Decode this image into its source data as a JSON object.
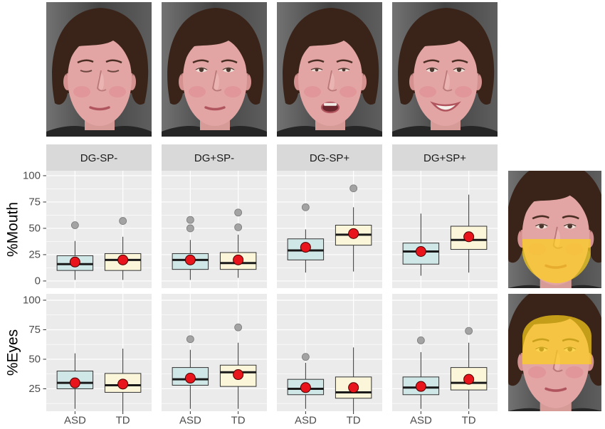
{
  "colors": {
    "panel_bg": "#ebebeb",
    "strip_bg": "#d9d9d9",
    "asd_fill": "#cfe7e6",
    "td_fill": "#fbf6da",
    "mean_point": "#e8161c",
    "outlier_point": "#a3a3a3",
    "aoi_overlay": "#ffd21a"
  },
  "chart_data": {
    "type": "boxplot",
    "facets": [
      "DG-SP-",
      "DG+SP-",
      "DG-SP+",
      "DG+SP+"
    ],
    "categories": [
      "ASD",
      "TD"
    ],
    "grid": true,
    "legend": "none",
    "rows": [
      {
        "ylabel": "%Mouth",
        "yticks": [
          0,
          25,
          50,
          75,
          100
        ],
        "ylim": [
          -6.8,
          104.7
        ],
        "panels": [
          [
            {
              "whisker_low": 1,
              "q1": 10,
              "median": 16,
              "q3": 24,
              "whisker_high": 38,
              "mean": 18,
              "outliers": [
                53
              ]
            },
            {
              "whisker_low": 1,
              "q1": 10,
              "median": 20,
              "q3": 26,
              "whisker_high": 42,
              "mean": 20,
              "outliers": [
                57
              ]
            }
          ],
          [
            {
              "whisker_low": 1,
              "q1": 11,
              "median": 20,
              "q3": 26,
              "whisker_high": 39,
              "mean": 20,
              "outliers": [
                50,
                58
              ]
            },
            {
              "whisker_low": 3,
              "q1": 11,
              "median": 17,
              "q3": 27,
              "whisker_high": 44,
              "mean": 20,
              "outliers": [
                51,
                65
              ]
            }
          ],
          [
            {
              "whisker_low": 8,
              "q1": 20,
              "median": 29,
              "q3": 40,
              "whisker_high": 49,
              "mean": 32,
              "outliers": [
                70
              ]
            },
            {
              "whisker_low": 9,
              "q1": 34,
              "median": 44,
              "q3": 53,
              "whisker_high": 70,
              "mean": 45,
              "outliers": [
                88
              ]
            }
          ],
          [
            {
              "whisker_low": 5,
              "q1": 16,
              "median": 28,
              "q3": 36,
              "whisker_high": 64,
              "mean": 28,
              "outliers": []
            },
            {
              "whisker_low": 8,
              "q1": 30,
              "median": 39,
              "q3": 52,
              "whisker_high": 82,
              "mean": 42,
              "outliers": []
            }
          ]
        ]
      },
      {
        "ylabel": "%Eyes",
        "yticks": [
          25,
          50,
          75,
          100
        ],
        "ylim": [
          6,
          105.4
        ],
        "panels": [
          [
            {
              "whisker_low": 8,
              "q1": 25,
              "median": 30,
              "q3": 40,
              "whisker_high": 55,
              "mean": 30,
              "outliers": []
            },
            {
              "whisker_low": 6,
              "q1": 22,
              "median": 28,
              "q3": 38,
              "whisker_high": 59,
              "mean": 29,
              "outliers": []
            }
          ],
          [
            {
              "whisker_low": 8,
              "q1": 28,
              "median": 33,
              "q3": 43,
              "whisker_high": 58,
              "mean": 34,
              "outliers": [
                67
              ]
            },
            {
              "whisker_low": 8,
              "q1": 27,
              "median": 39,
              "q3": 45,
              "whisker_high": 64,
              "mean": 37,
              "outliers": [
                77
              ]
            }
          ],
          [
            {
              "whisker_low": 8,
              "q1": 20,
              "median": 25,
              "q3": 33,
              "whisker_high": 47,
              "mean": 26,
              "outliers": [
                52
              ]
            },
            {
              "whisker_low": 6,
              "q1": 17,
              "median": 22,
              "q3": 35,
              "whisker_high": 60,
              "mean": 26,
              "outliers": []
            }
          ],
          [
            {
              "whisker_low": 8,
              "q1": 20,
              "median": 26,
              "q3": 35,
              "whisker_high": 56,
              "mean": 27,
              "outliers": [
                66
              ]
            },
            {
              "whisker_low": 8,
              "q1": 24,
              "median": 30,
              "q3": 43,
              "whisker_high": 64,
              "mean": 33,
              "outliers": [
                74
              ]
            }
          ]
        ]
      }
    ]
  }
}
